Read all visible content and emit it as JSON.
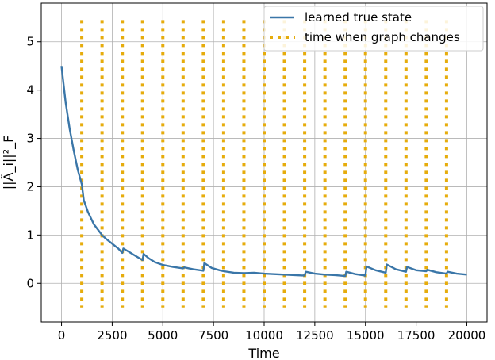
{
  "chart_data": {
    "type": "line",
    "xlabel": "Time",
    "ylabel": "||Ã_i||²_F",
    "xlim": [
      -1000,
      21000
    ],
    "ylim": [
      -0.8,
      5.8
    ],
    "x_ticks": [
      0,
      2500,
      5000,
      7500,
      10000,
      12500,
      15000,
      17500,
      20000
    ],
    "x_tick_labels": [
      "0",
      "2500",
      "5000",
      "7500",
      "10000",
      "12500",
      "15000",
      "17500",
      "20000"
    ],
    "y_ticks": [
      0,
      1,
      2,
      3,
      4,
      5
    ],
    "y_tick_labels": [
      "0",
      "1",
      "2",
      "3",
      "4",
      "5"
    ],
    "grid": true,
    "legend_position": "top-right",
    "series": [
      {
        "name": "learned true state",
        "style": "solid",
        "color": "#3a76a8",
        "x": [
          0,
          200,
          400,
          600,
          800,
          1000,
          1100,
          1300,
          1600,
          2000,
          2200,
          2500,
          2800,
          3000,
          3050,
          3300,
          3600,
          4000,
          4050,
          4300,
          4600,
          5000,
          5500,
          6000,
          6050,
          6500,
          7000,
          7050,
          7400,
          7800,
          8000,
          8500,
          9000,
          9500,
          10000,
          10500,
          11000,
          11500,
          12000,
          12050,
          12500,
          13000,
          13500,
          14000,
          14050,
          14500,
          15000,
          15050,
          15500,
          16000,
          16050,
          16500,
          17000,
          17050,
          17500,
          18000,
          18050,
          18500,
          19000,
          19050,
          19500,
          20000
        ],
        "y": [
          4.5,
          3.75,
          3.2,
          2.75,
          2.35,
          2.05,
          1.72,
          1.48,
          1.22,
          1.0,
          0.92,
          0.82,
          0.72,
          0.63,
          0.72,
          0.66,
          0.58,
          0.48,
          0.61,
          0.52,
          0.44,
          0.38,
          0.34,
          0.31,
          0.33,
          0.29,
          0.26,
          0.42,
          0.32,
          0.27,
          0.25,
          0.22,
          0.21,
          0.22,
          0.2,
          0.19,
          0.18,
          0.17,
          0.16,
          0.24,
          0.2,
          0.18,
          0.17,
          0.15,
          0.24,
          0.19,
          0.16,
          0.35,
          0.27,
          0.22,
          0.39,
          0.29,
          0.24,
          0.34,
          0.27,
          0.25,
          0.28,
          0.23,
          0.2,
          0.24,
          0.2,
          0.18
        ]
      },
      {
        "name": "time when graph changes",
        "style": "dotted",
        "color": "#e6ac0c",
        "x": [
          1000,
          2000,
          3000,
          4000,
          5000,
          6000,
          7000,
          8000,
          9000,
          10000,
          11000,
          12000,
          13000,
          14000,
          15000,
          16000,
          17000,
          18000,
          19000
        ],
        "ymin": -0.5,
        "ymax": 5.45
      }
    ]
  }
}
